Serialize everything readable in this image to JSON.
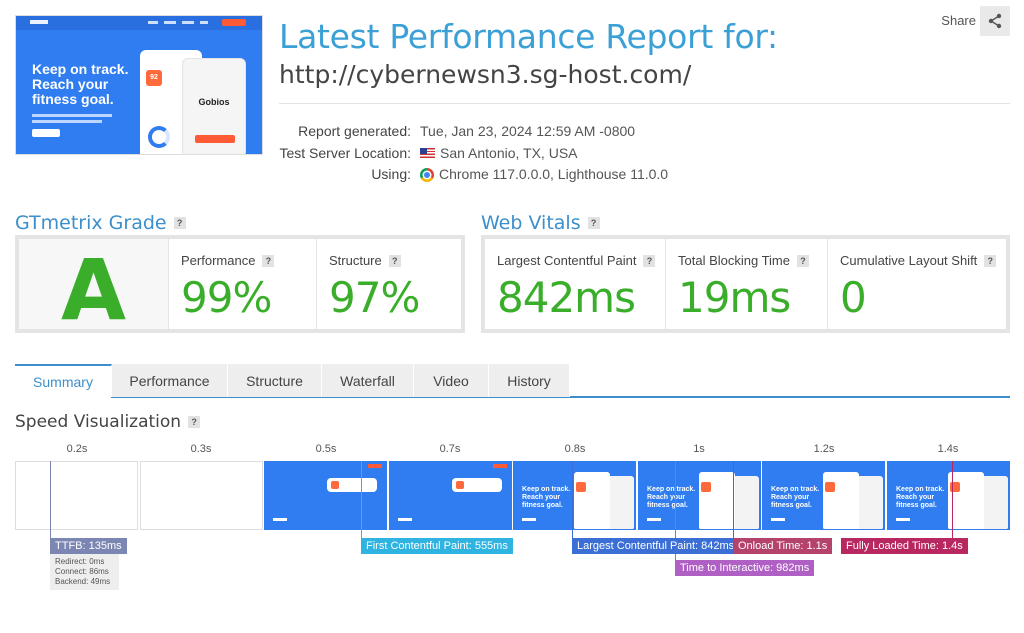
{
  "header": {
    "title": "Latest Performance Report for:",
    "url": "http://cybernewsn3.sg-host.com/",
    "share_label": "Share",
    "thumbnail": {
      "headline": [
        "Keep on track.",
        "Reach your",
        "fitness goal."
      ],
      "app_name": "Gobios",
      "score_badge": "92"
    }
  },
  "meta": {
    "labels": [
      "Report generated:",
      "Test Server Location:",
      "Using:"
    ],
    "generated": "Tue, Jan 23, 2024 12:59 AM -0800",
    "location": "San Antonio, TX, USA",
    "using": "Chrome 117.0.0.0, Lighthouse 11.0.0"
  },
  "grade": {
    "heading": "GTmetrix Grade",
    "letter": "A",
    "performance_label": "Performance",
    "performance_value": "99%",
    "structure_label": "Structure",
    "structure_value": "97%"
  },
  "vitals": {
    "heading": "Web Vitals",
    "lcp_label": "Largest Contentful Paint",
    "lcp_value": "842ms",
    "tbt_label": "Total Blocking Time",
    "tbt_value": "19ms",
    "cls_label": "Cumulative Layout Shift",
    "cls_value": "0"
  },
  "tabs": [
    "Summary",
    "Performance",
    "Structure",
    "Waterfall",
    "Video",
    "History"
  ],
  "speed": {
    "heading": "Speed Visualization",
    "times": [
      "0.2s",
      "0.3s",
      "0.5s",
      "0.7s",
      "0.8s",
      "1s",
      "1.2s",
      "1.4s"
    ],
    "frame_headline": [
      "Keep on track.",
      "Reach your",
      "fitness goal."
    ],
    "markers": {
      "ttfb": "TTFB: 135ms",
      "fcp": "First Contentful Paint: 555ms",
      "lcp": "Largest Contentful Paint: 842ms",
      "onload": "Onload Time: 1.1s",
      "fully": "Fully Loaded Time: 1.4s",
      "tti": "Time to Interactive: 982ms"
    },
    "ttfb_breakdown": [
      "Redirect: 0ms",
      "Connect: 86ms",
      "Backend: 49ms"
    ]
  },
  "colors": {
    "accent": "#3b8fcb",
    "good": "#3aae2a",
    "ttfb": "#7c86b3",
    "fcp": "#2fb3e0",
    "lcp": "#3b6fd6",
    "onload": "#b5426a",
    "fully": "#b8275f",
    "tti": "#b05fc4"
  }
}
